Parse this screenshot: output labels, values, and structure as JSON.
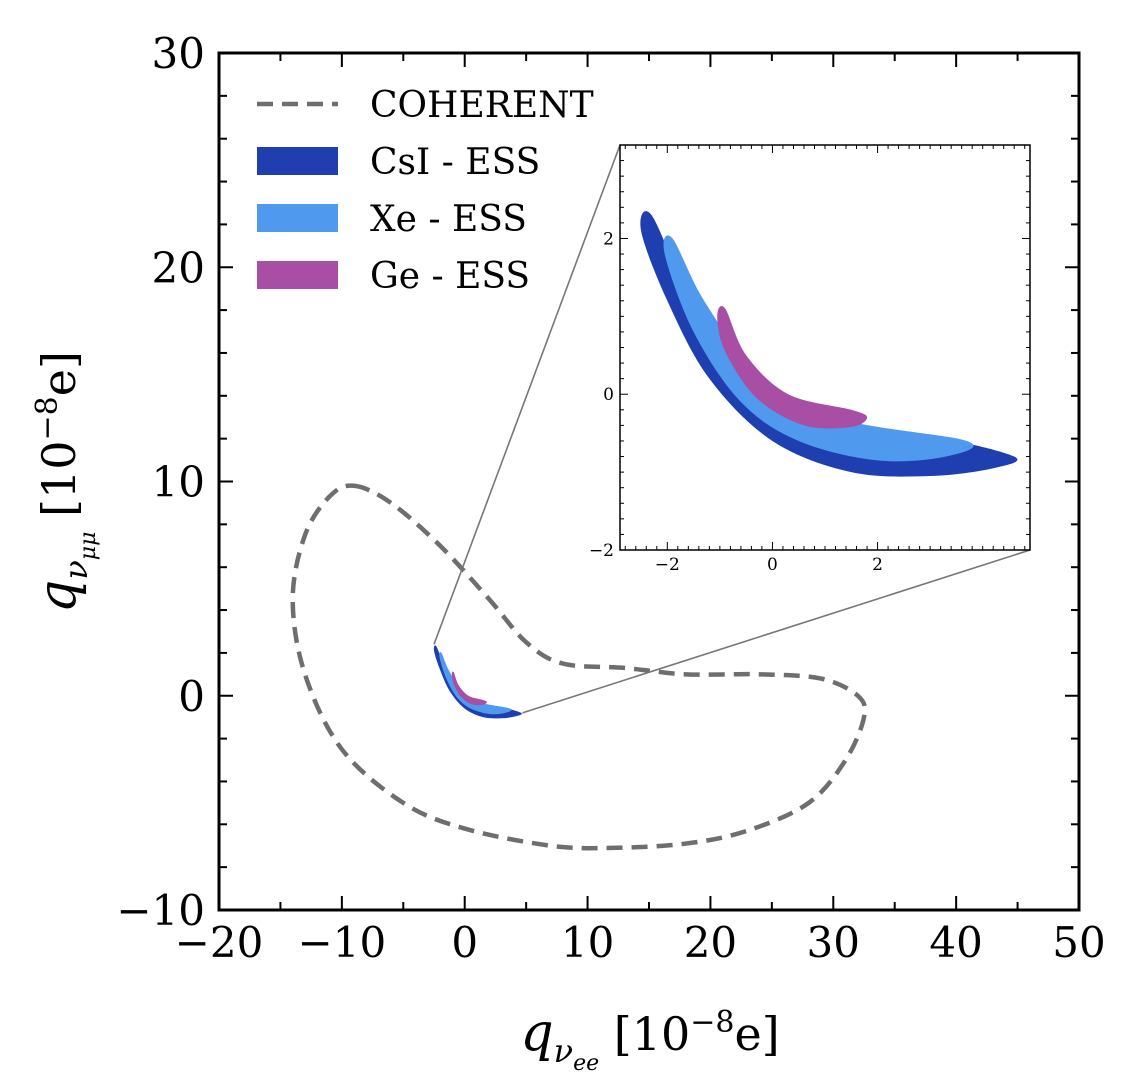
{
  "chart_data": [
    {
      "id": "main",
      "type": "contour",
      "title": "",
      "xlabel": {
        "symbol": "q",
        "sub": "ν",
        "subsub": "ee",
        "unit_prefix": "[10",
        "exponent": "−8",
        "unit_suffix": "e]"
      },
      "ylabel": {
        "symbol": "q",
        "sub": "ν",
        "subsub": "μμ",
        "unit_prefix": "[10",
        "exponent": "−8",
        "unit_suffix": "e]"
      },
      "xlim": [
        -20,
        50
      ],
      "ylim": [
        -10,
        30
      ],
      "xticks": [
        -20,
        -10,
        0,
        10,
        20,
        30,
        40,
        50
      ],
      "xtick_labels": [
        "−20",
        "−10",
        "0",
        "10",
        "20",
        "30",
        "40",
        "50"
      ],
      "yticks": [
        -10,
        0,
        10,
        20,
        30
      ],
      "ytick_labels": [
        "−10",
        "0",
        "10",
        "20",
        "30"
      ],
      "legend": {
        "placement": "upper-left",
        "entries": [
          {
            "label": "COHERENT",
            "style": "dashed",
            "color": "#6e6e6e"
          },
          {
            "label": "CsI - ESS",
            "style": "fill",
            "color": "#1f3fb0"
          },
          {
            "label": "Xe - ESS",
            "style": "fill",
            "color": "#4f9aee"
          },
          {
            "label": "Ge - ESS",
            "style": "fill",
            "color": "#a84ea4"
          }
        ]
      },
      "series": [
        {
          "name": "COHERENT",
          "style": "dashed",
          "color": "#6e6e6e",
          "points": [
            [
              -9,
              9.8
            ],
            [
              -6,
              9
            ],
            [
              -2,
              7
            ],
            [
              2,
              4.5
            ],
            [
              5,
              2.5
            ],
            [
              8,
              1.5
            ],
            [
              13,
              1.3
            ],
            [
              18,
              1.0
            ],
            [
              24,
              1.0
            ],
            [
              29,
              0.8
            ],
            [
              32,
              0
            ],
            [
              32.5,
              -1.0
            ],
            [
              31,
              -3.0
            ],
            [
              28,
              -5.0
            ],
            [
              23,
              -6.3
            ],
            [
              18,
              -6.9
            ],
            [
              12,
              -7.1
            ],
            [
              7,
              -7.0
            ],
            [
              0,
              -6.2
            ],
            [
              -5,
              -5.0
            ],
            [
              -10,
              -2.5
            ],
            [
              -13,
              1.0
            ],
            [
              -14,
              4.5
            ],
            [
              -13,
              7.5
            ],
            [
              -11,
              9.3
            ],
            [
              -9,
              9.8
            ]
          ]
        },
        {
          "name": "CsI - ESS",
          "style": "fill",
          "color": "#1f3fb0",
          "points": [
            [
              -2.3,
              2.3
            ],
            [
              -1.6,
              1.3
            ],
            [
              -0.5,
              0.2
            ],
            [
              1.0,
              -0.5
            ],
            [
              3.0,
              -0.55
            ],
            [
              4.6,
              -0.8
            ],
            [
              4.2,
              -0.95
            ],
            [
              3.0,
              -1.05
            ],
            [
              1.5,
              -1.0
            ],
            [
              0,
              -0.6
            ],
            [
              -1.2,
              0.2
            ],
            [
              -2.0,
              1.2
            ],
            [
              -2.5,
              2.1
            ],
            [
              -2.3,
              2.3
            ]
          ]
        },
        {
          "name": "Xe - ESS",
          "style": "fill",
          "color": "#4f9aee",
          "points": [
            [
              -1.9,
              2.0
            ],
            [
              -1.3,
              1.2
            ],
            [
              -0.3,
              0.3
            ],
            [
              1.2,
              -0.3
            ],
            [
              3.7,
              -0.6
            ],
            [
              3.3,
              -0.8
            ],
            [
              2.0,
              -0.85
            ],
            [
              0.5,
              -0.6
            ],
            [
              -0.6,
              -0.1
            ],
            [
              -1.5,
              0.8
            ],
            [
              -2.05,
              1.8
            ],
            [
              -1.9,
              2.0
            ]
          ]
        },
        {
          "name": "Ge - ESS",
          "style": "fill",
          "color": "#a84ea4",
          "points": [
            [
              -0.9,
              1.1
            ],
            [
              -0.5,
              0.5
            ],
            [
              0.3,
              0.0
            ],
            [
              1.5,
              -0.2
            ],
            [
              1.8,
              -0.3
            ],
            [
              1.5,
              -0.42
            ],
            [
              0.6,
              -0.4
            ],
            [
              -0.3,
              -0.05
            ],
            [
              -0.9,
              0.55
            ],
            [
              -1.05,
              1.0
            ],
            [
              -0.9,
              1.1
            ]
          ]
        }
      ],
      "annotations": [
        {
          "type": "zoom-lines",
          "from_data": [
            [
              -2.5,
              2.4
            ],
            [
              4.7,
              -0.8
            ]
          ],
          "to": "inset"
        }
      ]
    },
    {
      "id": "inset",
      "type": "contour",
      "title": "",
      "xlim": [
        -2.9,
        4.9
      ],
      "ylim": [
        -2,
        3.2
      ],
      "xticks": [
        -2,
        0,
        2
      ],
      "xtick_labels": [
        "−2",
        "0",
        "2"
      ],
      "yticks": [
        -2,
        0,
        2
      ],
      "ytick_labels": [
        "−2",
        "0",
        "2"
      ],
      "series_ref": [
        "CsI - ESS",
        "Xe - ESS",
        "Ge - ESS"
      ]
    }
  ]
}
